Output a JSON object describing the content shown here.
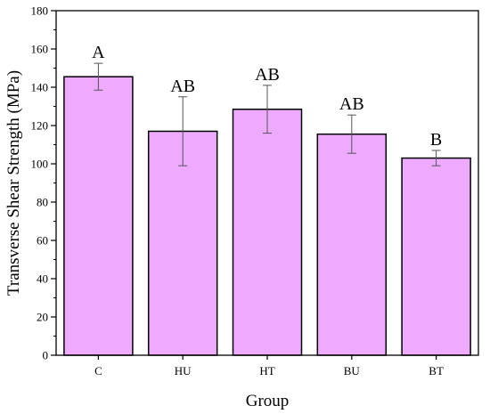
{
  "chart_data": {
    "type": "bar",
    "xlabel": "Group",
    "ylabel": "Transverse Shear Strength (MPa)",
    "categories": [
      "C",
      "HU",
      "HT",
      "BU",
      "BT"
    ],
    "values": [
      145.5,
      117,
      128.5,
      115.5,
      103
    ],
    "error": [
      7,
      18,
      12.5,
      10,
      4
    ],
    "significance": [
      "A",
      "AB",
      "AB",
      "AB",
      "B"
    ],
    "ylim": [
      0,
      180
    ],
    "yticks": [
      0,
      20,
      40,
      60,
      80,
      100,
      120,
      140,
      160,
      180
    ],
    "grid": false,
    "bar_color": "#eeaaff",
    "edge_color": "#000000"
  }
}
